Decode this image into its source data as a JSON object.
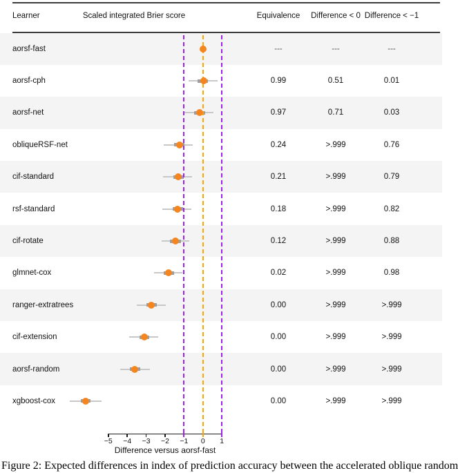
{
  "header": {
    "learner": "Learner",
    "plot_col": "Scaled integrated Brier score",
    "equivalence": "Equivalence",
    "diff_lt_0": "Difference < 0",
    "diff_lt_minus1": "Difference < −1"
  },
  "rows": [
    {
      "label": "aorsf-fast",
      "equivalence": "---",
      "diff_lt_0": "---",
      "diff_lt_minus1": "---",
      "est": 0.0,
      "inner": null,
      "outer": null
    },
    {
      "label": "aorsf-cph",
      "equivalence": "0.99",
      "diff_lt_0": "0.51",
      "diff_lt_minus1": "0.01",
      "est": 0.03,
      "inner": [
        -0.3,
        0.25
      ],
      "outer": [
        -0.76,
        0.76
      ]
    },
    {
      "label": "aorsf-net",
      "equivalence": "0.97",
      "diff_lt_0": "0.71",
      "diff_lt_minus1": "0.03",
      "est": -0.18,
      "inner": [
        -0.47,
        0.1
      ],
      "outer": [
        -1.02,
        0.55
      ]
    },
    {
      "label": "obliqueRSF-net",
      "equivalence": "0.24",
      "diff_lt_0": ">.999",
      "diff_lt_minus1": "0.76",
      "est": -1.24,
      "inner": [
        -1.52,
        -0.96
      ],
      "outer": [
        -2.08,
        -0.54
      ]
    },
    {
      "label": "cif-standard",
      "equivalence": "0.21",
      "diff_lt_0": ">.999",
      "diff_lt_minus1": "0.79",
      "est": -1.3,
      "inner": [
        -1.57,
        -1.0
      ],
      "outer": [
        -2.11,
        -0.56
      ]
    },
    {
      "label": "rsf-standard",
      "equivalence": "0.18",
      "diff_lt_0": ">.999",
      "diff_lt_minus1": "0.82",
      "est": -1.34,
      "inner": [
        -1.6,
        -1.05
      ],
      "outer": [
        -2.14,
        -0.61
      ]
    },
    {
      "label": "cif-rotate",
      "equivalence": "0.12",
      "diff_lt_0": ">.999",
      "diff_lt_minus1": "0.88",
      "est": -1.45,
      "inner": [
        -1.74,
        -1.16
      ],
      "outer": [
        -2.2,
        -0.72
      ]
    },
    {
      "label": "glmnet-cox",
      "equivalence": "0.02",
      "diff_lt_0": ">.999",
      "diff_lt_minus1": "0.98",
      "est": -1.82,
      "inner": [
        -2.08,
        -1.53
      ],
      "outer": [
        -2.59,
        -1.09
      ]
    },
    {
      "label": "ranger-extratrees",
      "equivalence": "0.00",
      "diff_lt_0": ">.999",
      "diff_lt_minus1": ">.999",
      "est": -2.72,
      "inner": [
        -2.97,
        -2.44
      ],
      "outer": [
        -3.51,
        -1.97
      ]
    },
    {
      "label": "cif-extension",
      "equivalence": "0.00",
      "diff_lt_0": ">.999",
      "diff_lt_minus1": ">.999",
      "est": -3.1,
      "inner": [
        -3.36,
        -2.85
      ],
      "outer": [
        -3.89,
        -2.36
      ]
    },
    {
      "label": "aorsf-random",
      "equivalence": "0.00",
      "diff_lt_0": ">.999",
      "diff_lt_minus1": ">.999",
      "est": -3.62,
      "inner": [
        -3.85,
        -3.33
      ],
      "outer": [
        -4.37,
        -2.82
      ]
    },
    {
      "label": "xgboost-cox",
      "equivalence": "0.00",
      "diff_lt_0": ">.999",
      "diff_lt_minus1": ">.999",
      "est": -6.19,
      "inner": [
        -6.47,
        -5.93
      ],
      "outer": [
        -7.02,
        -5.34
      ]
    }
  ],
  "axis": {
    "ticks": [
      -5,
      -4,
      -3,
      -2,
      -1,
      0,
      1
    ],
    "tick_labels": [
      "−5",
      "−4",
      "−3",
      "−2",
      "−1",
      "0",
      "1"
    ],
    "label": "Difference versus aorsf-fast",
    "min": -5,
    "max": 1
  },
  "ref_lines": [
    {
      "value": -1,
      "color_key": "purple"
    },
    {
      "value": 0,
      "color_key": "orange"
    },
    {
      "value": 1,
      "color_key": "purple"
    }
  ],
  "caption": "Figure 2: Expected differences in index of prediction accuracy between the accelerated oblique random",
  "colors": {
    "orange": "#FFA500",
    "orange_point": "#F5861F",
    "purple": "#A020F0",
    "ci_outer": "#C8C8C8",
    "ci_inner": "#9E9E9E",
    "stripe": "#F4F4F4",
    "rule": "#3A3A3A",
    "na_text": "#555555"
  },
  "chart_data": {
    "type": "scatter",
    "subtype": "forest-plot-with-table",
    "title": "Scaled integrated Brier score",
    "xlabel": "Difference versus aorsf-fast",
    "xlim": [
      -5,
      1
    ],
    "x_ticks": [
      -5,
      -4,
      -3,
      -2,
      -1,
      0,
      1
    ],
    "grid": false,
    "reference_lines": [
      {
        "x": -1,
        "style": "dashed",
        "color": "#A020F0"
      },
      {
        "x": 0,
        "style": "dashed",
        "color": "#FFA500"
      },
      {
        "x": 1,
        "style": "dashed",
        "color": "#A020F0"
      }
    ],
    "categories": [
      "aorsf-fast",
      "aorsf-cph",
      "aorsf-net",
      "obliqueRSF-net",
      "cif-standard",
      "rsf-standard",
      "cif-rotate",
      "glmnet-cox",
      "ranger-extratrees",
      "cif-extension",
      "aorsf-random",
      "xgboost-cox"
    ],
    "series": [
      {
        "name": "point estimate",
        "values": [
          0.0,
          0.03,
          -0.18,
          -1.24,
          -1.3,
          -1.34,
          -1.45,
          -1.82,
          -2.72,
          -3.1,
          -3.62,
          -6.19
        ]
      },
      {
        "name": "inner interval low",
        "values": [
          null,
          -0.3,
          -0.47,
          -1.52,
          -1.57,
          -1.6,
          -1.74,
          -2.08,
          -2.97,
          -3.36,
          -3.85,
          -6.47
        ]
      },
      {
        "name": "inner interval high",
        "values": [
          null,
          0.25,
          0.1,
          -0.96,
          -1.0,
          -1.05,
          -1.16,
          -1.53,
          -2.44,
          -2.85,
          -3.33,
          -5.93
        ]
      },
      {
        "name": "outer interval low",
        "values": [
          null,
          -0.76,
          -1.02,
          -2.08,
          -2.11,
          -2.14,
          -2.2,
          -2.59,
          -3.51,
          -3.89,
          -4.37,
          -7.02
        ]
      },
      {
        "name": "outer interval high",
        "values": [
          null,
          0.76,
          0.55,
          -0.54,
          -0.56,
          -0.61,
          -0.72,
          -1.09,
          -1.97,
          -2.36,
          -2.82,
          -5.34
        ]
      }
    ],
    "table_columns": {
      "Equivalence": [
        "---",
        "0.99",
        "0.97",
        "0.24",
        "0.21",
        "0.18",
        "0.12",
        "0.02",
        "0.00",
        "0.00",
        "0.00",
        "0.00"
      ],
      "Difference < 0": [
        "---",
        "0.51",
        "0.71",
        ">.999",
        ">.999",
        ">.999",
        ">.999",
        ">.999",
        ">.999",
        ">.999",
        ">.999",
        ">.999"
      ],
      "Difference < -1": [
        "---",
        "0.01",
        "0.03",
        "0.76",
        "0.79",
        "0.82",
        "0.88",
        "0.98",
        ">.999",
        ">.999",
        ">.999",
        ">.999"
      ]
    }
  }
}
